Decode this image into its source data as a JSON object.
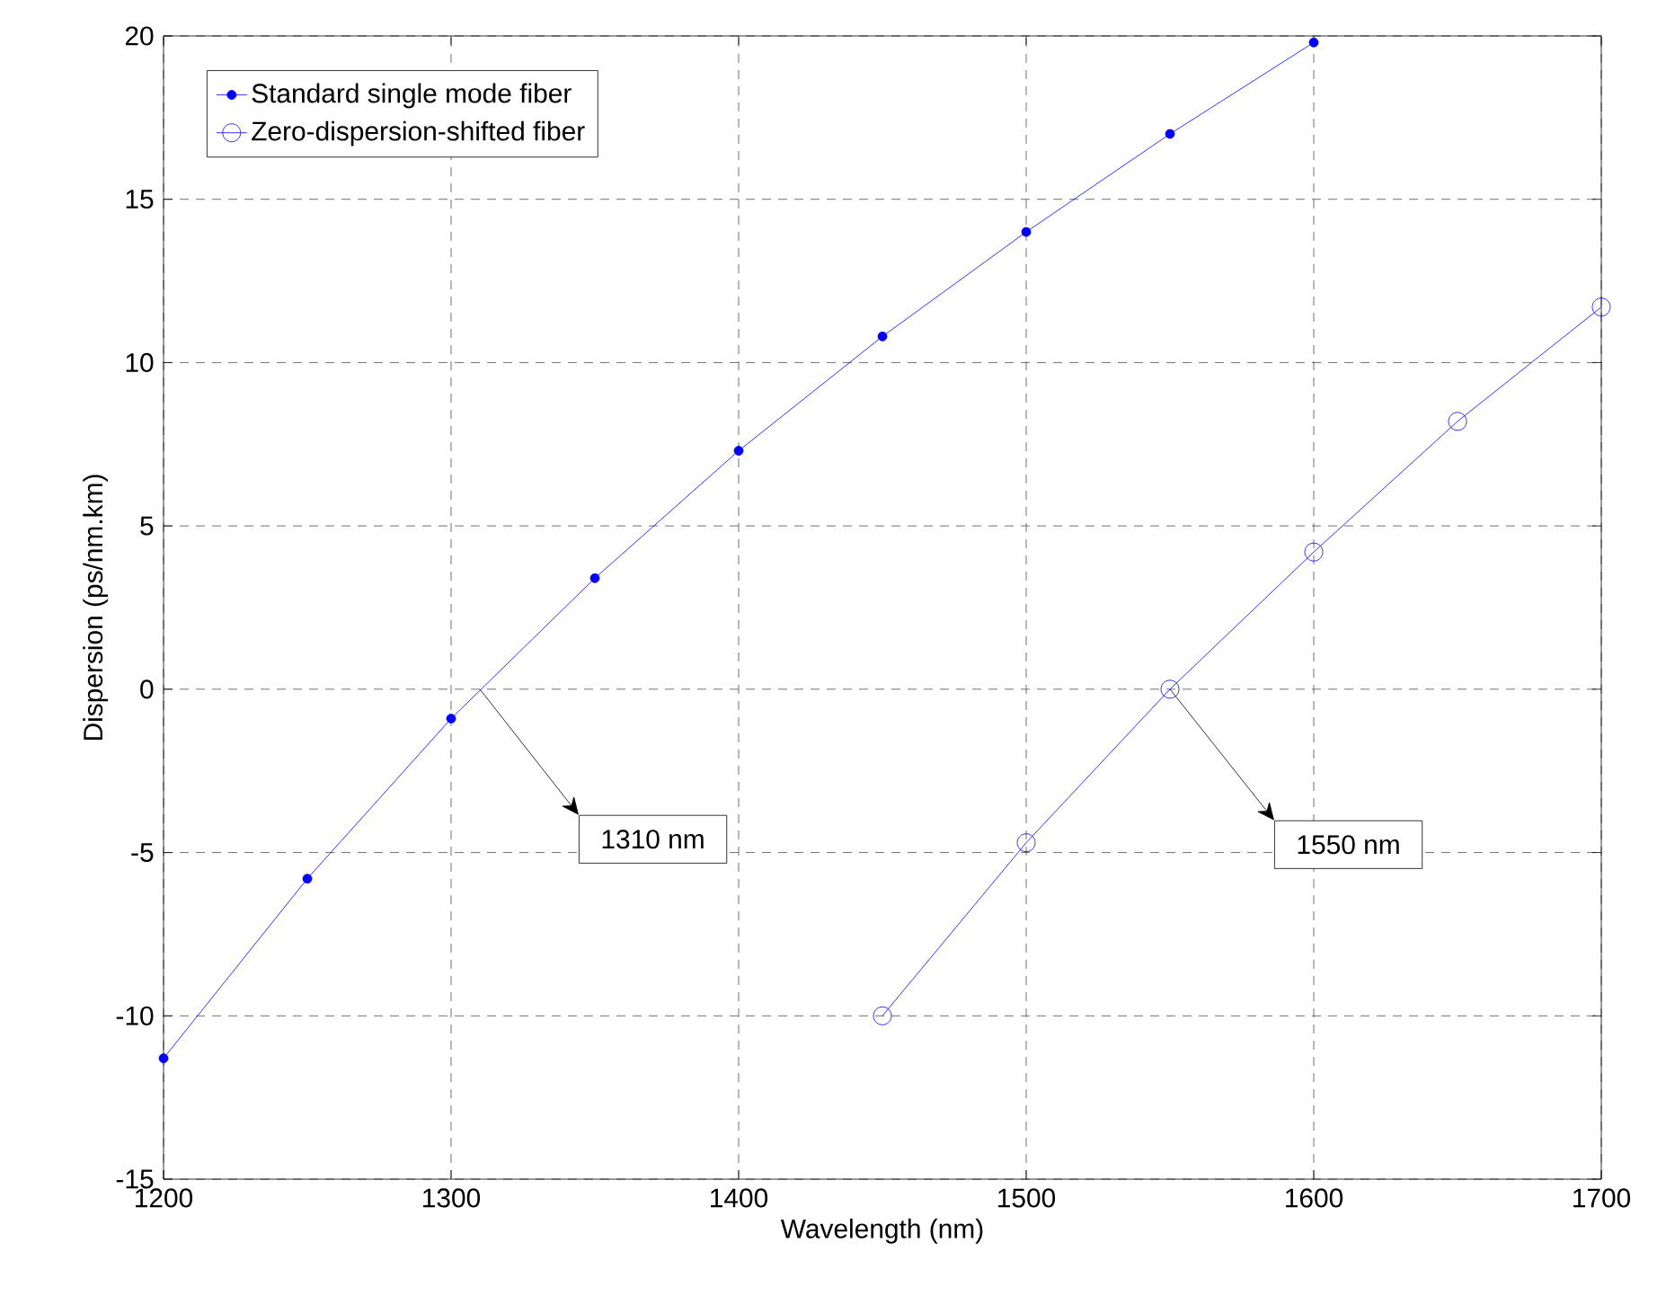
{
  "chart_data": {
    "type": "line",
    "xlabel": "Wavelength (nm)",
    "ylabel": "Dispersion (ps/nm.km)",
    "series": [
      {
        "name": "Standard single mode fiber",
        "color": "#0000ff",
        "marker": "circle",
        "x": [
          1200,
          1250,
          1300,
          1350,
          1400,
          1450,
          1500,
          1550,
          1600
        ],
        "values": [
          -11.3,
          -5.8,
          -0.9,
          3.4,
          7.3,
          10.8,
          14.0,
          17.0,
          19.8
        ]
      },
      {
        "name": "Zero-dispersion-shifted fiber",
        "color": "#0000ff",
        "marker": "circle",
        "x": [
          1450,
          1500,
          1550,
          1600,
          1650,
          1700
        ],
        "values": [
          -10.0,
          -4.7,
          0.0,
          4.2,
          8.2,
          11.7
        ]
      }
    ],
    "annotations": [
      "1310 nm",
      "1550 nm"
    ],
    "xlim": [
      1200,
      1700
    ],
    "xticks": [
      1200,
      1300,
      1400,
      1500,
      1600,
      1700
    ],
    "ylim": [
      -15,
      20
    ],
    "yticks": [
      -15,
      -10,
      -5,
      0,
      5,
      10,
      15,
      20
    ],
    "grid": true,
    "legend": "top left",
    "line_style": "solid"
  }
}
